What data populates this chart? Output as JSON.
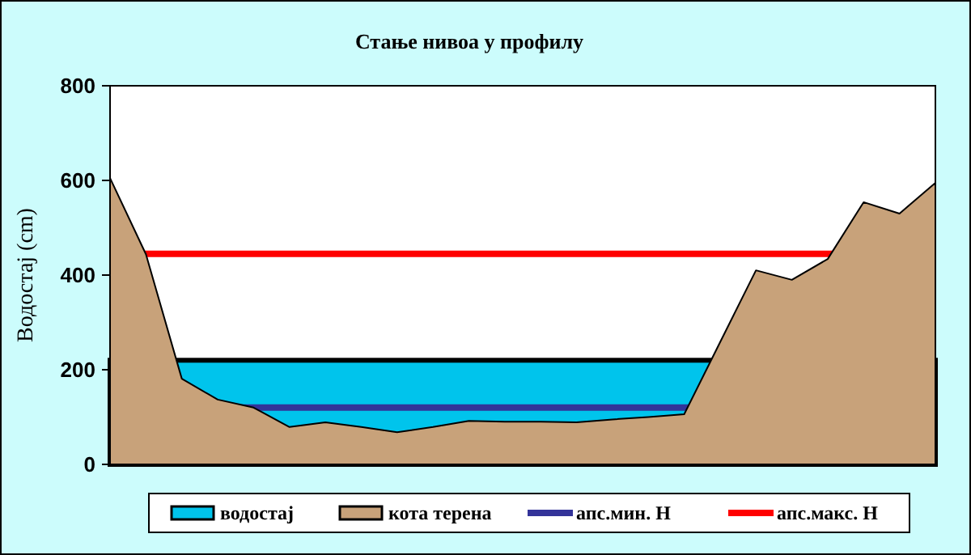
{
  "chart_data": {
    "type": "area",
    "title": "Стање нивоа у профилу",
    "ylabel": "Водостај (cm)",
    "categories": [
      null,
      null,
      null,
      null,
      null,
      null,
      null,
      null,
      null,
      null,
      null,
      null,
      null,
      null,
      null,
      null,
      null,
      null,
      null,
      null,
      null,
      null,
      null,
      null
    ],
    "ylim": [
      0,
      800
    ],
    "yticks": [
      0,
      200,
      400,
      600,
      800
    ],
    "grid": false,
    "legend": "bottom",
    "series": [
      {
        "name": "кота терена",
        "color": "#c8a27a",
        "values": [
          605,
          444,
          181,
          137,
          120,
          79,
          89,
          79,
          68,
          79,
          92,
          90,
          90,
          89,
          95,
          100,
          106,
          258,
          410,
          390,
          434,
          554,
          530,
          595
        ]
      }
    ],
    "bands": [
      {
        "axis": "y",
        "from": 0,
        "to": 220,
        "label": "водостај",
        "color": "#00c4ec"
      }
    ],
    "ref_lines": [
      {
        "axis": "y",
        "value": 120,
        "label": "апс.мин. H",
        "color": "#333399"
      },
      {
        "axis": "y",
        "value": 445,
        "label": "апс.макс. H",
        "color": "#ff0000"
      }
    ]
  }
}
